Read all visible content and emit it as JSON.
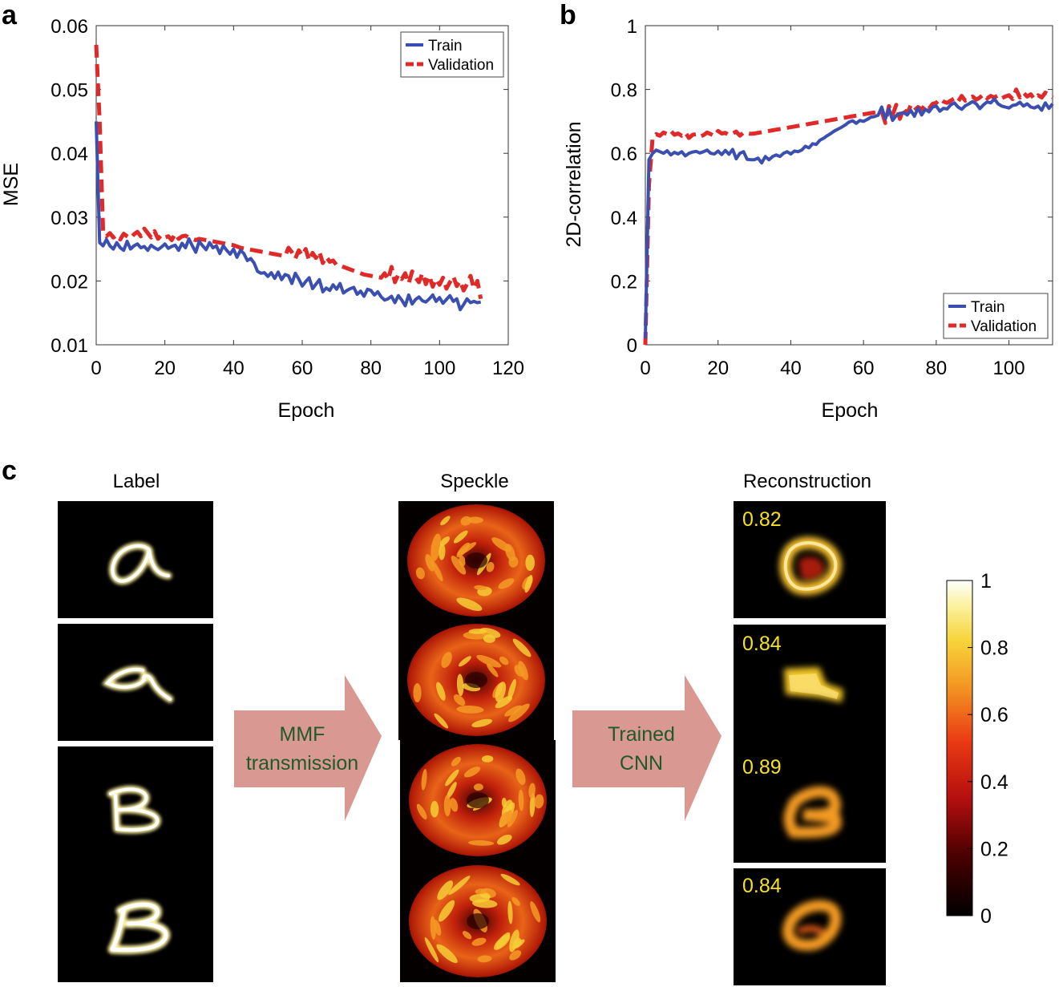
{
  "panels": {
    "a": "a",
    "b": "b",
    "c": "c"
  },
  "chart_data": [
    {
      "type": "line",
      "panel": "a",
      "xlabel": "Epoch",
      "ylabel": "MSE",
      "xlim": [
        0,
        120
      ],
      "ylim": [
        0.01,
        0.06
      ],
      "xticks": [
        0,
        20,
        40,
        60,
        80,
        100,
        120
      ],
      "yticks": [
        0.01,
        0.02,
        0.03,
        0.04,
        0.05,
        0.06
      ],
      "legend": "top-right",
      "series": [
        {
          "name": "Train",
          "color": "#3a4fb0",
          "style": "solid",
          "x": [
            0,
            1,
            2,
            3,
            4,
            5,
            6,
            7,
            8,
            9,
            10,
            11,
            12,
            13,
            14,
            15,
            16,
            17,
            18,
            19,
            20,
            21,
            22,
            23,
            24,
            25,
            26,
            27,
            28,
            29,
            30,
            31,
            32,
            33,
            34,
            35,
            36,
            37,
            38,
            39,
            40,
            41,
            42,
            43,
            44,
            45,
            46,
            47,
            48,
            49,
            50,
            51,
            52,
            53,
            54,
            55,
            56,
            57,
            58,
            59,
            60,
            61,
            62,
            63,
            64,
            65,
            66,
            67,
            68,
            69,
            70,
            71,
            72,
            73,
            74,
            75,
            76,
            77,
            78,
            79,
            80,
            81,
            82,
            83,
            84,
            85,
            86,
            87,
            88,
            89,
            90,
            91,
            92,
            93,
            94,
            95,
            96,
            97,
            98,
            99,
            100,
            101,
            102,
            103,
            104,
            105,
            106,
            107,
            108,
            109,
            110,
            111,
            112
          ],
          "y": [
            0.045,
            0.026,
            0.0255,
            0.0265,
            0.0255,
            0.025,
            0.026,
            0.0252,
            0.0248,
            0.0262,
            0.025,
            0.0255,
            0.0258,
            0.0252,
            0.0254,
            0.0248,
            0.0256,
            0.0252,
            0.0249,
            0.0253,
            0.0258,
            0.0251,
            0.0254,
            0.0256,
            0.0248,
            0.0259,
            0.0252,
            0.0266,
            0.0255,
            0.0245,
            0.0262,
            0.0255,
            0.0249,
            0.026,
            0.0252,
            0.0255,
            0.0243,
            0.0255,
            0.0248,
            0.0242,
            0.025,
            0.0237,
            0.0248,
            0.0243,
            0.0232,
            0.0235,
            0.0228,
            0.0215,
            0.0212,
            0.0213,
            0.0207,
            0.0213,
            0.0204,
            0.0214,
            0.0202,
            0.021,
            0.0208,
            0.0196,
            0.0212,
            0.0203,
            0.0192,
            0.0199,
            0.0205,
            0.0188,
            0.0195,
            0.0202,
            0.0183,
            0.0189,
            0.0185,
            0.0194,
            0.0187,
            0.0196,
            0.0181,
            0.0185,
            0.0188,
            0.019,
            0.0179,
            0.0184,
            0.0176,
            0.0187,
            0.0185,
            0.0178,
            0.0183,
            0.0175,
            0.017,
            0.0172,
            0.0176,
            0.0166,
            0.0177,
            0.017,
            0.0161,
            0.0178,
            0.0164,
            0.0171,
            0.0175,
            0.0169,
            0.0167,
            0.0172,
            0.0178,
            0.0168,
            0.0174,
            0.0165,
            0.0171,
            0.0177,
            0.0168,
            0.0172,
            0.0155,
            0.0163,
            0.0172,
            0.0166,
            0.0168,
            0.0166,
            0.0167
          ]
        },
        {
          "name": "Validation",
          "color": "#e02a2a",
          "style": "dashed",
          "x": [
            0,
            1,
            2,
            3,
            4,
            5,
            6,
            7,
            8,
            9,
            10,
            11,
            12,
            13,
            14,
            15,
            16,
            17,
            18,
            19,
            20,
            21,
            22,
            23,
            24,
            25,
            26,
            27,
            28,
            29,
            30,
            31,
            32,
            33,
            34,
            35,
            36,
            37,
            38,
            39,
            40,
            41,
            42,
            43,
            44,
            45,
            46,
            47,
            48,
            49,
            50,
            51,
            52,
            53,
            54,
            55,
            56,
            57,
            58,
            59,
            60,
            61,
            62,
            63,
            64,
            65,
            66,
            67,
            68,
            69,
            70,
            71,
            72,
            73,
            74,
            75,
            76,
            77,
            78,
            79,
            80,
            81,
            82,
            83,
            84,
            85,
            86,
            87,
            88,
            89,
            90,
            91,
            92,
            93,
            94,
            95,
            96,
            97,
            98,
            99,
            100,
            101,
            102,
            103,
            104,
            105,
            106,
            107,
            108,
            109,
            110,
            111,
            112
          ],
          "y": [
            0.057,
            0.045,
            0.0278,
            0.027,
            0.0275,
            0.0268,
            0.0272,
            0.0265,
            0.0274,
            0.027,
            0.0267,
            0.0273,
            0.0277,
            0.027,
            0.0282,
            0.0275,
            0.0268,
            0.0278,
            0.0266,
            0.0272,
            0.0268,
            0.027,
            0.0264,
            0.0274,
            0.0266,
            0.027,
            0.0271,
            0.0268,
            0.0266,
            0.0264,
            0.0266,
            0.0265,
            0.0264,
            0.0263,
            0.0262,
            0.0261,
            0.026,
            0.0259,
            0.0258,
            0.0257,
            0.0256,
            0.0254,
            0.0252,
            0.0251,
            0.025,
            0.0249,
            0.0248,
            0.0247,
            0.0246,
            0.0245,
            0.0244,
            0.0243,
            0.0242,
            0.0241,
            0.024,
            0.0239,
            0.0252,
            0.0245,
            0.0235,
            0.0248,
            0.024,
            0.025,
            0.0232,
            0.0244,
            0.0236,
            0.0246,
            0.0228,
            0.0238,
            0.023,
            0.0232,
            0.0225,
            0.0224,
            0.0222,
            0.022,
            0.0218,
            0.0216,
            0.0214,
            0.0212,
            0.021,
            0.0209,
            0.0208,
            0.0207,
            0.0206,
            0.0205,
            0.0212,
            0.0202,
            0.0222,
            0.0198,
            0.021,
            0.0203,
            0.0212,
            0.0196,
            0.0215,
            0.0205,
            0.0198,
            0.0212,
            0.0195,
            0.0208,
            0.0191,
            0.0203,
            0.0194,
            0.0205,
            0.0188,
            0.0198,
            0.0207,
            0.0192,
            0.02,
            0.0185,
            0.0195,
            0.0208,
            0.0188,
            0.02,
            0.0172
          ]
        }
      ]
    },
    {
      "type": "line",
      "panel": "b",
      "xlabel": "Epoch",
      "ylabel": "2D-correlation",
      "xlim": [
        0,
        112
      ],
      "ylim": [
        0,
        1
      ],
      "xticks": [
        0,
        20,
        40,
        60,
        80,
        100
      ],
      "yticks": [
        0,
        0.2,
        0.4,
        0.6,
        0.8,
        1
      ],
      "legend": "bottom-right",
      "series": [
        {
          "name": "Train",
          "color": "#3a4fb0",
          "style": "solid",
          "x": [
            0,
            1,
            2,
            3,
            4,
            5,
            6,
            7,
            8,
            9,
            10,
            11,
            12,
            13,
            14,
            15,
            16,
            17,
            18,
            19,
            20,
            21,
            22,
            23,
            24,
            25,
            26,
            27,
            28,
            29,
            30,
            31,
            32,
            33,
            34,
            35,
            36,
            37,
            38,
            39,
            40,
            41,
            42,
            43,
            44,
            45,
            46,
            47,
            48,
            49,
            50,
            51,
            52,
            53,
            54,
            55,
            56,
            57,
            58,
            59,
            60,
            61,
            62,
            63,
            64,
            65,
            66,
            67,
            68,
            69,
            70,
            71,
            72,
            73,
            74,
            75,
            76,
            77,
            78,
            79,
            80,
            81,
            82,
            83,
            84,
            85,
            86,
            87,
            88,
            89,
            90,
            91,
            92,
            93,
            94,
            95,
            96,
            97,
            98,
            99,
            100,
            101,
            102,
            103,
            104,
            105,
            106,
            107,
            108,
            109,
            110,
            111,
            112
          ],
          "y": [
            0.02,
            0.58,
            0.6,
            0.61,
            0.605,
            0.6,
            0.608,
            0.595,
            0.603,
            0.598,
            0.605,
            0.592,
            0.6,
            0.604,
            0.606,
            0.601,
            0.605,
            0.61,
            0.6,
            0.598,
            0.607,
            0.596,
            0.609,
            0.597,
            0.612,
            0.583,
            0.6,
            0.605,
            0.581,
            0.58,
            0.58,
            0.585,
            0.57,
            0.59,
            0.58,
            0.59,
            0.595,
            0.59,
            0.6,
            0.605,
            0.598,
            0.607,
            0.605,
            0.61,
            0.622,
            0.617,
            0.63,
            0.628,
            0.641,
            0.647,
            0.655,
            0.662,
            0.67,
            0.676,
            0.682,
            0.689,
            0.698,
            0.702,
            0.694,
            0.703,
            0.7,
            0.706,
            0.713,
            0.715,
            0.719,
            0.745,
            0.708,
            0.74,
            0.703,
            0.718,
            0.724,
            0.728,
            0.72,
            0.735,
            0.716,
            0.742,
            0.72,
            0.738,
            0.73,
            0.745,
            0.748,
            0.732,
            0.741,
            0.739,
            0.752,
            0.758,
            0.745,
            0.738,
            0.749,
            0.755,
            0.762,
            0.755,
            0.74,
            0.752,
            0.761,
            0.758,
            0.77,
            0.755,
            0.748,
            0.745,
            0.742,
            0.75,
            0.752,
            0.76,
            0.748,
            0.755,
            0.745,
            0.742,
            0.748,
            0.735,
            0.758,
            0.741,
            0.755
          ]
        },
        {
          "name": "Validation",
          "color": "#e02a2a",
          "style": "dashed",
          "x": [
            0,
            1,
            2,
            3,
            4,
            5,
            6,
            7,
            8,
            9,
            10,
            11,
            12,
            13,
            14,
            15,
            16,
            17,
            18,
            19,
            20,
            21,
            22,
            23,
            24,
            25,
            26,
            27,
            28,
            29,
            30,
            31,
            32,
            33,
            34,
            35,
            36,
            37,
            38,
            39,
            40,
            41,
            42,
            43,
            44,
            45,
            46,
            47,
            48,
            49,
            50,
            51,
            52,
            53,
            54,
            55,
            56,
            57,
            58,
            59,
            60,
            61,
            62,
            63,
            64,
            65,
            66,
            67,
            68,
            69,
            70,
            71,
            72,
            73,
            74,
            75,
            76,
            77,
            78,
            79,
            80,
            81,
            82,
            83,
            84,
            85,
            86,
            87,
            88,
            89,
            90,
            91,
            92,
            93,
            94,
            95,
            96,
            97,
            98,
            99,
            100,
            101,
            102,
            103,
            104,
            105,
            106,
            107,
            108,
            109,
            110,
            111,
            112
          ],
          "y": [
            0.0,
            0.5,
            0.65,
            0.66,
            0.655,
            0.665,
            0.66,
            0.67,
            0.658,
            0.662,
            0.655,
            0.665,
            0.648,
            0.658,
            0.66,
            0.652,
            0.657,
            0.665,
            0.66,
            0.654,
            0.67,
            0.662,
            0.664,
            0.657,
            0.662,
            0.668,
            0.655,
            0.665,
            0.663,
            0.661,
            0.662,
            0.664,
            0.666,
            0.668,
            0.67,
            0.672,
            0.674,
            0.676,
            0.678,
            0.68,
            0.682,
            0.684,
            0.686,
            0.688,
            0.69,
            0.692,
            0.694,
            0.696,
            0.698,
            0.7,
            0.702,
            0.704,
            0.706,
            0.708,
            0.71,
            0.712,
            0.714,
            0.716,
            0.718,
            0.72,
            0.722,
            0.724,
            0.726,
            0.728,
            0.73,
            0.732,
            0.695,
            0.748,
            0.72,
            0.752,
            0.708,
            0.74,
            0.725,
            0.75,
            0.735,
            0.745,
            0.738,
            0.752,
            0.74,
            0.755,
            0.758,
            0.77,
            0.762,
            0.758,
            0.765,
            0.772,
            0.762,
            0.78,
            0.765,
            0.772,
            0.778,
            0.768,
            0.775,
            0.785,
            0.772,
            0.78,
            0.775,
            0.782,
            0.772,
            0.778,
            0.782,
            0.77,
            0.8,
            0.775,
            0.79,
            0.778,
            0.785,
            0.77,
            0.782,
            0.775,
            0.79,
            0.785,
            0.775
          ]
        }
      ]
    }
  ],
  "panel_c": {
    "columns": [
      "Label",
      "Speckle",
      "Reconstruction"
    ],
    "arrows": [
      {
        "line1": "MMF",
        "line2": "transmission"
      },
      {
        "line1": "Trained",
        "line2": "CNN"
      }
    ],
    "scores": [
      "0.82",
      "0.84",
      "0.89",
      "0.84"
    ],
    "colorbar": {
      "ticks": [
        "1",
        "0.8",
        "0.6",
        "0.4",
        "0.2",
        "0"
      ],
      "range": [
        0,
        1
      ]
    }
  }
}
